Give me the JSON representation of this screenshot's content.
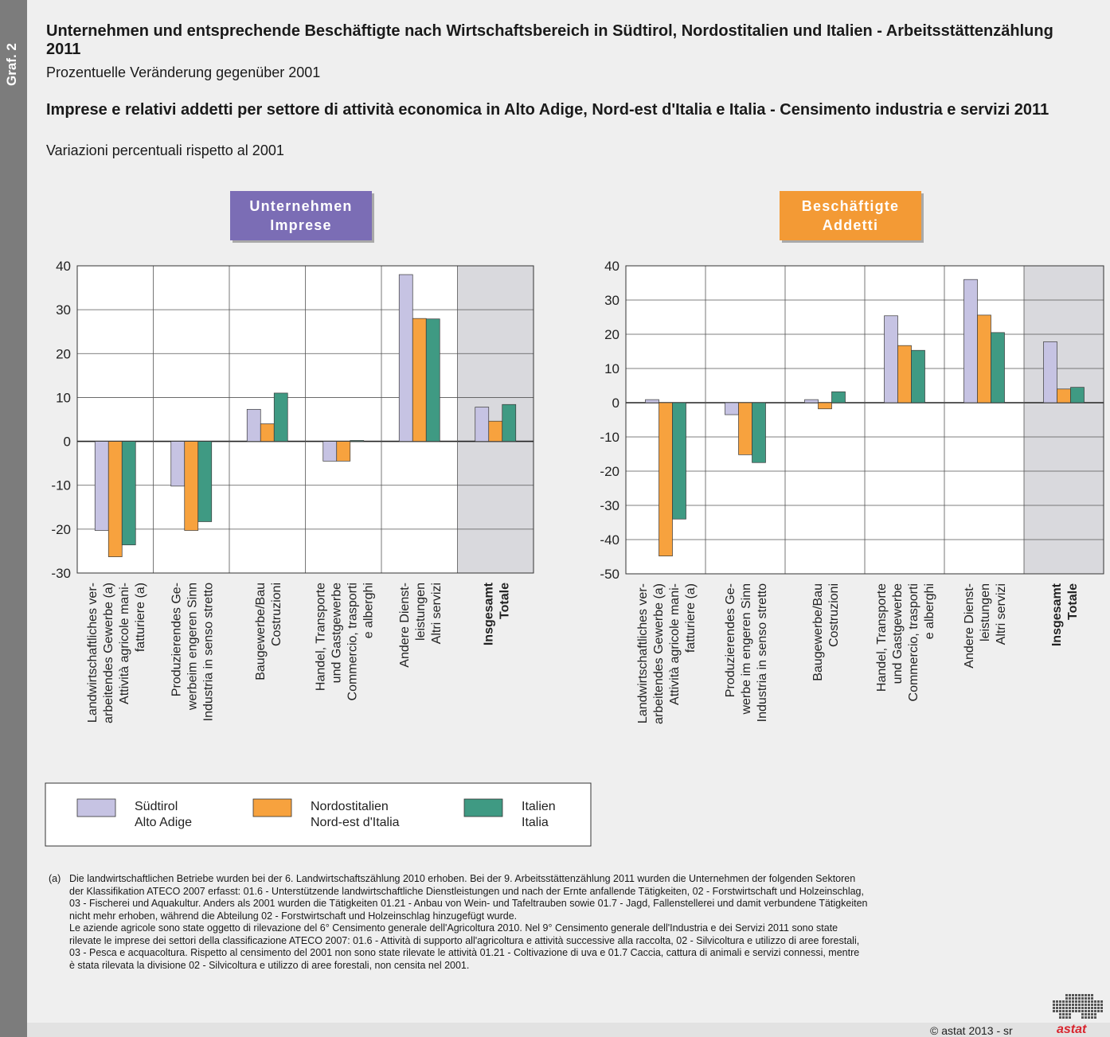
{
  "side_label": "Graf. 2",
  "title_de": "Unternehmen und entsprechende Beschäftigte nach Wirtschaftsbereich in Südtirol, Nordostitalien und Italien - Arbeitsstättenzählung 2011",
  "subtitle_de": "Prozentuelle Veränderung gegenüber 2001",
  "title_it": "Imprese e relativi addetti per settore di attività economica in Alto Adige, Nord-est d'Italia e Italia - Censimento industria e servizi 2011",
  "subtitle_it": "Variazioni percentuali rispetto al 2001",
  "colors": {
    "suedtirol": "#c6c3e3",
    "nordost": "#f7a23e",
    "italien": "#3f9a83",
    "badge_left": "#7b6db5",
    "badge_right": "#f39a35",
    "total_bg": "#d9d9dd"
  },
  "categories": [
    [
      "Landwirtschaftliches ver-",
      "arbeitendes Gewerbe (a)",
      "Attività agricole mani-",
      "fatturiere (a)"
    ],
    [
      "Produzierendes Ge-",
      "werbe im engeren Sinn",
      "Industria in senso stretto"
    ],
    [
      "Baugewerbe/Bau",
      "Costruzioni"
    ],
    [
      "Handel, Transporte",
      "und Gastgewerbe",
      "Commercio, trasporti",
      "e alberghi"
    ],
    [
      "Andere Dienst-",
      "leistungen",
      "Altri servizi"
    ],
    [
      "Insgesamt",
      "Totale"
    ]
  ],
  "categories_left_2": [
    "Produzierendes Ge-",
    "werbeim engeren Sinn",
    "Industria in senso stretto"
  ],
  "chart_data": [
    {
      "type": "bar",
      "badge": [
        "Unternehmen",
        "Imprese"
      ],
      "ylim": [
        -30,
        40
      ],
      "yticks": [
        "40",
        "30",
        "20",
        "10",
        "0",
        "-10",
        "-20",
        "-30"
      ],
      "series": [
        {
          "name": "Südtirol / Alto Adige",
          "values": [
            -20.3,
            -10.2,
            7.3,
            -4.5,
            38.0,
            7.8
          ]
        },
        {
          "name": "Nordostitalien / Nord-est d'Italia",
          "values": [
            -26.3,
            -20.3,
            4.0,
            -4.5,
            28.0,
            4.6
          ]
        },
        {
          "name": "Italien / Italia",
          "values": [
            -23.6,
            -18.3,
            11.0,
            0.2,
            27.9,
            8.4
          ]
        }
      ]
    },
    {
      "type": "bar",
      "badge": [
        "Beschäftigte",
        "Addetti"
      ],
      "ylim": [
        -50,
        40
      ],
      "yticks": [
        "40",
        "30",
        "20",
        "10",
        "0",
        "-10",
        "-20",
        "-30",
        "-40",
        "-50"
      ],
      "series": [
        {
          "name": "Südtirol / Alto Adige",
          "values": [
            0.9,
            -3.5,
            0.9,
            25.4,
            36.0,
            17.8
          ]
        },
        {
          "name": "Nordostitalien / Nord-est d'Italia",
          "values": [
            -44.8,
            -15.2,
            -1.8,
            16.7,
            25.6,
            4.0
          ]
        },
        {
          "name": "Italien / Italia",
          "values": [
            -34.0,
            -17.5,
            3.2,
            15.3,
            20.5,
            4.5
          ]
        }
      ]
    }
  ],
  "legend": [
    {
      "line1": "Südtirol",
      "line2": "Alto Adige"
    },
    {
      "line1": "Nordostitalien",
      "line2": "Nord-est d'Italia"
    },
    {
      "line1": "Italien",
      "line2": "Italia"
    }
  ],
  "footnote_marker": "(a)",
  "footnote_lines": [
    "Die landwirtschaftlichen Betriebe wurden bei der 6. Landwirtschaftszählung 2010 erhoben. Bei der 9. Arbeitsstättenzählung 2011 wurden die Unternehmen der folgenden Sektoren",
    "der Klassifikation ATECO 2007 erfasst: 01.6 - Unterstützende landwirtschaftliche Dienstleistungen und nach der Ernte anfallende Tätigkeiten, 02 - Forstwirtschaft und Holzeinschlag,",
    "03 - Fischerei und Aquakultur. Anders als 2001 wurden die Tätigkeiten 01.21 - Anbau von Wein- und Tafeltrauben sowie 01.7 - Jagd, Fallenstellerei und damit verbundene Tätigkeiten",
    "nicht mehr erhoben, während die Abteilung 02 - Forstwirtschaft und Holzeinschlag hinzugefügt wurde.",
    "Le aziende agricole sono state oggetto di rilevazione del 6° Censimento generale dell'Agricoltura 2010. Nel 9° Censimento generale dell'Industria e dei Servizi 2011 sono state",
    "rilevate le imprese dei settori della classificazione ATECO 2007: 01.6 - Attività di supporto all'agricoltura e attività successive alla raccolta, 02 - Silvicoltura e utilizzo di aree forestali,",
    "03 - Pesca e acquacoltura. Rispetto al censimento del 2001 non sono state rilevate le attività 01.21 - Coltivazione di uva e 01.7 Caccia, cattura di animali e servizi connessi, mentre",
    "è stata rilevata la divisione 02 - Silvicoltura e utilizzo di aree forestali, non censita nel 2001."
  ],
  "copyright": "© astat 2013 - sr",
  "logo_text": "astat"
}
